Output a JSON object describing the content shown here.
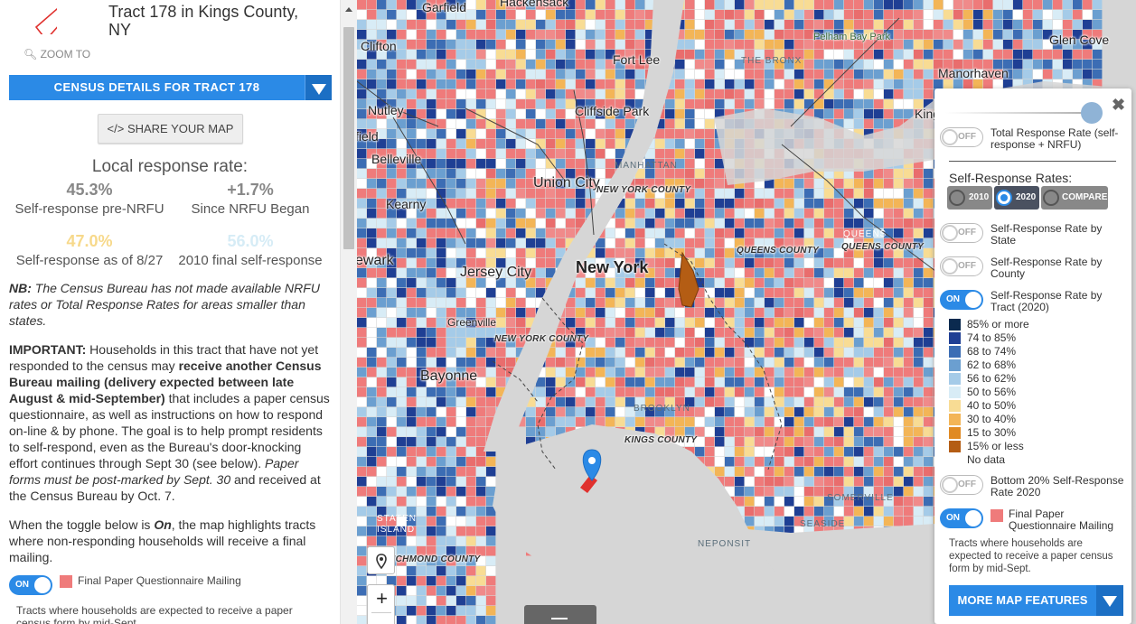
{
  "panel": {
    "title": "Tract 178 in Kings County, NY",
    "zoom_to": "ZOOM TO",
    "census_button": "CENSUS DETAILS FOR TRACT 178",
    "share_button": "</> SHARE YOUR MAP",
    "local_response_title": "Local response rate:",
    "stats": [
      {
        "value": "45.3%",
        "caption": "Self-response pre-NRFU",
        "color": "#888888"
      },
      {
        "value": "+1.7%",
        "caption": "Since NRFU Began",
        "color": "#888888"
      },
      {
        "value": "47.0%",
        "caption": "Self-response as of 8/27",
        "color": "#f7d98b"
      },
      {
        "value": "56.0%",
        "caption": "2010 final self-response",
        "color": "#d6ecf6"
      }
    ],
    "nb_label": "NB:",
    "nb_text": " The Census Bureau has not made available NRFU rates or Total Response Rates for areas smaller than states.",
    "important_label": "IMPORTANT:",
    "important_text_1": " Households in this tract that have not yet responded to the census may ",
    "important_bold": "receive another Census Bureau mailing (delivery expected between late August & mid-September)",
    "important_text_2": " that includes a paper census questionnaire, as well as instructions on how to respond on-line & by phone. The goal is to help prompt residents to self-respond, even as the Bureau's door-knocking effort continues through Sept 30 (see below). ",
    "important_italic": "Paper forms must be post-marked by Sept. 30",
    "important_text_3": " and received at the Census Bureau by Oct. 7.",
    "toggle_text_1": "When the toggle below is ",
    "toggle_text_on": "On",
    "toggle_text_2": ", the map highlights tracts where non-responding households will receive a final mailing.",
    "toggle_state": "ON",
    "toggle_label": "Final Paper Questionnaire Mailing",
    "toggle_note": "Tracts where households are expected to receive a paper census form by mid-Sept."
  },
  "map": {
    "labels": {
      "garfield": "Garfield",
      "hackensack": "Hackensack",
      "clifton": "Clifton",
      "nutley": "Nutley",
      "field": "field",
      "belleville": "Belleville",
      "kearny": "Kearny",
      "newark": "ewark",
      "fort_lee": "Fort Lee",
      "cliffside": "Cliffside Park",
      "the_bronx": "THE BRONX",
      "pelham": "Pelham Bay Park",
      "glen_cove": "Glen Cove",
      "manorhaven": "Manorhaven",
      "kings_point": "King",
      "union_city": "Union City",
      "manhattan": "MANHATTAN",
      "ny_county": "NEW YORK COUNTY",
      "new_york": "New York",
      "jersey_city": "Jersey City",
      "greenville": "Greenville",
      "ny_county_2": "NEW YORK COUNTY",
      "bayonne": "Bayonne",
      "queens_county": "QUEENS COUNTY",
      "queens": "QUEENS",
      "queens_county_2": "QUEENS COUNTY",
      "brooklyn": "BROOKLYN",
      "kings_county": "KINGS COUNTY",
      "somerville": "SOMERVILLE",
      "seaside": "SEASIDE",
      "neponsit": "NEPONSIT",
      "staten_island": "STATEN ISLAND",
      "richmond_county": "RICHMOND COUNTY"
    },
    "zoom_in": "+"
  },
  "legend": {
    "total_response": "Total Response Rate (self-response + NRFU)",
    "total_response_state": "OFF",
    "self_response_rates": "Self-Response Rates:",
    "years": [
      "2010",
      "2020",
      "COMPARE"
    ],
    "selected_year": "2020",
    "by_state": "Self-Response Rate by State",
    "by_state_state": "OFF",
    "by_county": "Self-Response Rate by County",
    "by_county_state": "OFF",
    "by_tract": "Self-Response Rate by Tract (2020)",
    "by_tract_state": "ON",
    "bins": [
      {
        "label": "85% or more",
        "color": "#0b2a4f"
      },
      {
        "label": "74 to 85%",
        "color": "#1f3f94"
      },
      {
        "label": "68 to 74%",
        "color": "#3c6db4"
      },
      {
        "label": "62 to 68%",
        "color": "#6b9fd0"
      },
      {
        "label": "56 to 62%",
        "color": "#a5cbe8"
      },
      {
        "label": "50 to 56%",
        "color": "#d8ecf6"
      },
      {
        "label": "40 to 50%",
        "color": "#f8dc94"
      },
      {
        "label": "30 to 40%",
        "color": "#f3b557"
      },
      {
        "label": "15 to 30%",
        "color": "#e08a23"
      },
      {
        "label": "15% or less",
        "color": "#b45d14"
      },
      {
        "label": "No data",
        "color": "#ffffff"
      }
    ],
    "bottom20": "Bottom 20% Self-Response Rate 2020",
    "bottom20_state": "OFF",
    "final_mailing": "Final Paper Questionnaire Mailing",
    "final_mailing_state": "ON",
    "final_mailing_note": "Tracts where households are expected to receive a paper census form by mid-Sept.",
    "more_button": "MORE MAP FEATURES"
  },
  "colors": {
    "accent": "#2b8ae6",
    "mailing_highlight": "#ef7b7b"
  }
}
